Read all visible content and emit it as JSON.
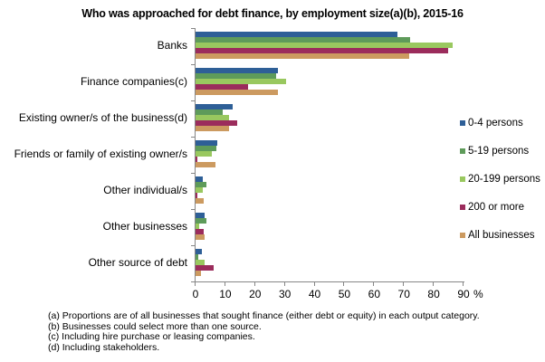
{
  "chart_data": {
    "type": "bar",
    "orientation": "horizontal",
    "title": "Who was approached for debt finance, by employment size(a)(b),  2015-16",
    "xlabel": "%",
    "ylabel": "",
    "xlim": [
      0,
      90
    ],
    "xticks": [
      0,
      10,
      20,
      30,
      40,
      50,
      60,
      70,
      80,
      90
    ],
    "grid": false,
    "legend_position": "right",
    "categories": [
      "Banks",
      "Finance companies(c)",
      "Existing owner/s of the business(d)",
      "Friends or family of existing owner/s",
      "Other individual/s",
      "Other businesses",
      "Other source of debt"
    ],
    "series": [
      {
        "name": "0-4 persons",
        "color": "#2E5F97",
        "values": [
          67.8,
          27.7,
          12.5,
          7.3,
          2.4,
          3.0,
          2.1
        ]
      },
      {
        "name": "5-19 persons",
        "color": "#5E9B5A",
        "values": [
          72.0,
          27.0,
          9.1,
          7.0,
          3.6,
          3.6,
          0.9
        ]
      },
      {
        "name": "20-199 persons",
        "color": "#99C85F",
        "values": [
          86.3,
          30.4,
          11.2,
          5.5,
          2.4,
          1.2,
          3.0
        ]
      },
      {
        "name": "200 or more",
        "color": "#9B2C5C",
        "values": [
          84.8,
          17.6,
          14.0,
          0.5,
          0.5,
          2.7,
          6.1
        ]
      },
      {
        "name": "All businesses",
        "color": "#CC9A60",
        "values": [
          71.7,
          27.7,
          11.2,
          6.7,
          2.7,
          3.0,
          1.8
        ]
      }
    ],
    "footnotes": [
      "(a) Proportions are of all businesses that sought finance (either debt or equity) in  each output category.",
      "(b) Businesses could select more than one source.",
      "(c) Including hire purchase or leasing companies.",
      "(d) Including  stakeholders."
    ]
  }
}
